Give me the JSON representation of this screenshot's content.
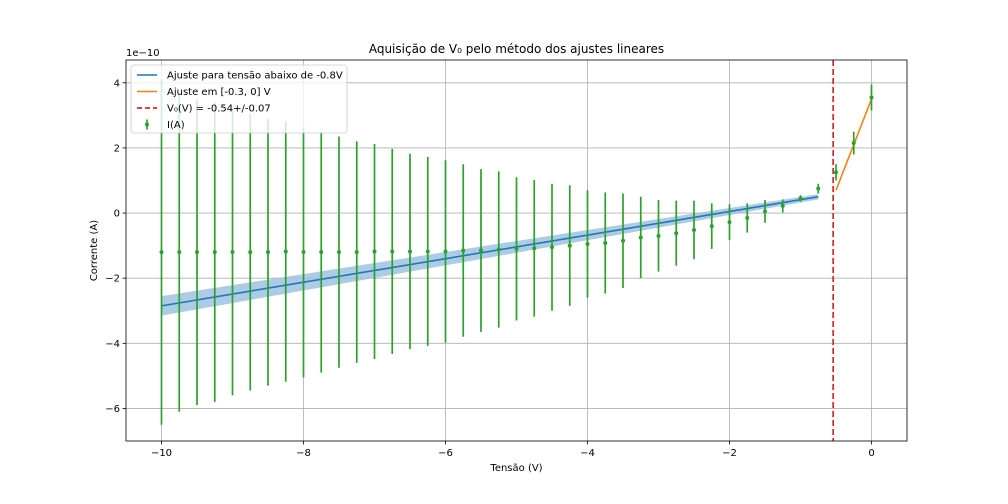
{
  "chart_data": {
    "type": "scatter",
    "title": "Aquisição de V₀ pelo método dos ajustes lineares",
    "xlabel": "Tensão (V)",
    "ylabel": "Corrente (A)",
    "y_offset_label": "1e−10",
    "xlim": [
      -10.5,
      0.5
    ],
    "ylim": [
      -7.0,
      4.7
    ],
    "x_ticks": [
      -10,
      -8,
      -6,
      -4,
      -2,
      0
    ],
    "x_tick_labels": [
      "−10",
      "−8",
      "−6",
      "−4",
      "−2",
      "0"
    ],
    "y_ticks": [
      -6,
      -4,
      -2,
      0,
      2,
      4
    ],
    "y_tick_labels": [
      "−6",
      "−4",
      "−2",
      "0",
      "2",
      "4"
    ],
    "grid": true,
    "legend_position": "top-left",
    "colors": {
      "fit_below": "#1f77b4",
      "fit_band": "#9ec3e0",
      "fit_near_zero": "#ff7f0e",
      "v0_line": "#d62728",
      "data": "#2ca02c"
    },
    "legend": {
      "fit_below": "Ajuste para tensão abaixo de -0.8V",
      "fit_near_zero": "Ajuste em [-0.3, 0] V",
      "v0_line": "V₀(V) = -0.54+/-0.07",
      "data": "I(A)"
    },
    "series": [
      {
        "name": "I(A)",
        "kind": "errorbar",
        "points": [
          {
            "x": -10.0,
            "y": -1.2,
            "err": 5.3
          },
          {
            "x": -9.75,
            "y": -1.2,
            "err": 4.9
          },
          {
            "x": -9.5,
            "y": -1.2,
            "err": 4.7
          },
          {
            "x": -9.25,
            "y": -1.2,
            "err": 4.6
          },
          {
            "x": -9.0,
            "y": -1.2,
            "err": 4.4
          },
          {
            "x": -8.75,
            "y": -1.2,
            "err": 4.25
          },
          {
            "x": -8.5,
            "y": -1.2,
            "err": 4.1
          },
          {
            "x": -8.25,
            "y": -1.18,
            "err": 4.0
          },
          {
            "x": -8.0,
            "y": -1.2,
            "err": 3.85
          },
          {
            "x": -7.75,
            "y": -1.2,
            "err": 3.7
          },
          {
            "x": -7.5,
            "y": -1.2,
            "err": 3.55
          },
          {
            "x": -7.25,
            "y": -1.2,
            "err": 3.4
          },
          {
            "x": -7.0,
            "y": -1.18,
            "err": 3.3
          },
          {
            "x": -6.75,
            "y": -1.18,
            "err": 3.15
          },
          {
            "x": -6.5,
            "y": -1.18,
            "err": 3.0
          },
          {
            "x": -6.25,
            "y": -1.18,
            "err": 2.9
          },
          {
            "x": -6.0,
            "y": -1.18,
            "err": 2.8
          },
          {
            "x": -5.75,
            "y": -1.15,
            "err": 2.65
          },
          {
            "x": -5.5,
            "y": -1.15,
            "err": 2.5
          },
          {
            "x": -5.25,
            "y": -1.12,
            "err": 2.4
          },
          {
            "x": -5.0,
            "y": -1.1,
            "err": 2.2
          },
          {
            "x": -4.75,
            "y": -1.08,
            "err": 2.1
          },
          {
            "x": -4.5,
            "y": -1.05,
            "err": 1.95
          },
          {
            "x": -4.25,
            "y": -1.0,
            "err": 1.85
          },
          {
            "x": -4.0,
            "y": -0.95,
            "err": 1.65
          },
          {
            "x": -3.75,
            "y": -0.92,
            "err": 1.55
          },
          {
            "x": -3.5,
            "y": -0.85,
            "err": 1.45
          },
          {
            "x": -3.25,
            "y": -0.75,
            "err": 1.25
          },
          {
            "x": -3.0,
            "y": -0.7,
            "err": 1.1
          },
          {
            "x": -2.75,
            "y": -0.62,
            "err": 1.0
          },
          {
            "x": -2.5,
            "y": -0.52,
            "err": 0.9
          },
          {
            "x": -2.25,
            "y": -0.4,
            "err": 0.7
          },
          {
            "x": -2.0,
            "y": -0.28,
            "err": 0.55
          },
          {
            "x": -1.75,
            "y": -0.15,
            "err": 0.45
          },
          {
            "x": -1.5,
            "y": 0.05,
            "err": 0.35
          },
          {
            "x": -1.25,
            "y": 0.22,
            "err": 0.2
          },
          {
            "x": -1.0,
            "y": 0.45,
            "err": 0.1
          },
          {
            "x": -0.75,
            "y": 0.75,
            "err": 0.15
          },
          {
            "x": -0.5,
            "y": 1.25,
            "err": 0.25
          },
          {
            "x": -0.25,
            "y": 2.15,
            "err": 0.35
          },
          {
            "x": 0.0,
            "y": 3.55,
            "err": 0.4
          }
        ]
      },
      {
        "name": "Ajuste para tensão abaixo de -0.8V",
        "kind": "line",
        "points": [
          {
            "x": -10.0,
            "y": -2.85
          },
          {
            "x": -0.75,
            "y": 0.5
          }
        ],
        "band": [
          {
            "x": -10.0,
            "lo": -3.15,
            "hi": -2.55
          },
          {
            "x": -0.75,
            "lo": 0.42,
            "hi": 0.58
          }
        ]
      },
      {
        "name": "Ajuste em [-0.3, 0] V",
        "kind": "line",
        "points": [
          {
            "x": -0.5,
            "y": 0.7
          },
          {
            "x": 0.0,
            "y": 3.5
          }
        ]
      },
      {
        "name": "V₀(V) = -0.54+/-0.07",
        "kind": "vline",
        "x": -0.54
      }
    ]
  }
}
